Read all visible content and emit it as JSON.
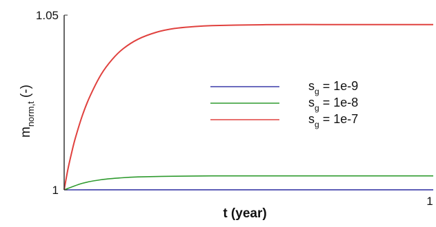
{
  "chart_data": {
    "type": "line",
    "xlabel": "t (year)",
    "ylabel": {
      "base": "m",
      "subscript": "norm,t",
      "suffix": " (-)"
    },
    "xlim": [
      0,
      1
    ],
    "ylim": [
      1,
      1.05
    ],
    "x_ticks": [
      {
        "value": 0,
        "label": ""
      },
      {
        "value": 1,
        "label": "1"
      }
    ],
    "y_ticks": [
      {
        "value": 1,
        "label": "1"
      },
      {
        "value": 1.05,
        "label": "1.05"
      }
    ],
    "grid": false,
    "legend_position": "right",
    "series": [
      {
        "legend_base": "s",
        "legend_sub": "g",
        "legend_rest": " = 1e-9",
        "color": "#3a3aa8",
        "x": [
          0,
          0.1,
          0.25,
          0.5,
          0.75,
          1.0
        ],
        "y": [
          1.0,
          1.00001,
          1.00001,
          1.00001,
          1.00001,
          1.00001
        ]
      },
      {
        "legend_base": "s",
        "legend_sub": "g",
        "legend_rest": " = 1e-8",
        "color": "#2e9a2e",
        "x": [
          0,
          0.05,
          0.1,
          0.15,
          0.2,
          0.3,
          0.4,
          0.5,
          0.6,
          0.7,
          0.8,
          0.9,
          1.0
        ],
        "y": [
          1.0,
          1.0019,
          1.0029,
          1.0034,
          1.0037,
          1.0039,
          1.004,
          1.004,
          1.004,
          1.004,
          1.004,
          1.004,
          1.004
        ]
      },
      {
        "legend_base": "s",
        "legend_sub": "g",
        "legend_rest": " = 1e-7",
        "color": "#e0413e",
        "x": [
          0,
          0.01,
          0.02,
          0.03,
          0.05,
          0.07,
          0.1,
          0.13,
          0.16,
          0.2,
          0.25,
          0.3,
          0.35,
          0.4,
          0.5,
          0.6,
          0.7,
          0.8,
          0.9,
          1.0
        ],
        "y": [
          1.0,
          1.0058,
          1.0105,
          1.0147,
          1.0215,
          1.0268,
          1.033,
          1.0373,
          1.0404,
          1.0431,
          1.0451,
          1.0462,
          1.0467,
          1.047,
          1.0472,
          1.0473,
          1.0473,
          1.0473,
          1.0473,
          1.0473
        ]
      }
    ]
  }
}
